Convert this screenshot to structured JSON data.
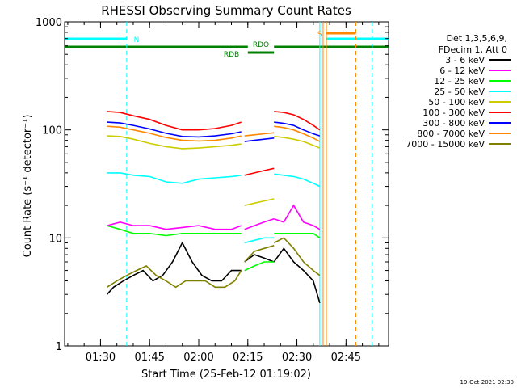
{
  "chart_data": {
    "type": "line",
    "title": "RHESSI Observing Summary Count Rates",
    "ylabel": "Count Rate (s⁻¹ detector⁻¹)",
    "xlabel": "Start Time (25-Feb-12 01:19:02)",
    "footer_date": "19-Oct-2021 02:30",
    "y_scale": "log",
    "ylim": [
      1,
      1000
    ],
    "y_ticks": [
      {
        "value": 1,
        "label": "1"
      },
      {
        "value": 10,
        "label": "10"
      },
      {
        "value": 100,
        "label": "100"
      },
      {
        "value": 1000,
        "label": "1000"
      }
    ],
    "xlim": [
      "01:19:02",
      "02:58:00"
    ],
    "x_ticks": [
      "01:30",
      "01:45",
      "02:00",
      "02:15",
      "02:30",
      "02:45"
    ],
    "grid": false,
    "legend_position": "right",
    "legend_header": [
      "Det 1,3,5,6,9,",
      "FDecim 1, Att 0"
    ],
    "series": [
      {
        "name": "3 - 6 keV",
        "color": "#000000",
        "segments": [
          {
            "x": [
              "01:32",
              "01:34",
              "01:37",
              "01:40",
              "01:43",
              "01:46",
              "01:49",
              "01:52",
              "01:55",
              "01:58",
              "02:01",
              "02:04",
              "02:07",
              "02:10",
              "02:13"
            ],
            "y": [
              3,
              3.5,
              4,
              4.5,
              5,
              4,
              4.5,
              6,
              9,
              6,
              4.5,
              4,
              4,
              5,
              5
            ]
          },
          {
            "x": [
              "02:14",
              "02:17",
              "02:20",
              "02:23"
            ],
            "y": [
              6,
              7,
              6.5,
              6
            ]
          },
          {
            "x": [
              "02:23",
              "02:26",
              "02:29",
              "02:32",
              "02:35",
              "02:37"
            ],
            "y": [
              6,
              8,
              6,
              5,
              4,
              2.5
            ]
          }
        ]
      },
      {
        "name": "6 - 12 keV",
        "color": "#ff00ff",
        "segments": [
          {
            "x": [
              "01:32",
              "01:36",
              "01:40",
              "01:45",
              "01:50",
              "01:55",
              "02:00",
              "02:05",
              "02:10",
              "02:13"
            ],
            "y": [
              13,
              14,
              13,
              13,
              12,
              12.5,
              13,
              12,
              12,
              13
            ]
          },
          {
            "x": [
              "02:14",
              "02:17",
              "02:20",
              "02:23"
            ],
            "y": [
              12,
              13,
              14,
              15
            ]
          },
          {
            "x": [
              "02:23",
              "02:26",
              "02:29",
              "02:32",
              "02:35",
              "02:37"
            ],
            "y": [
              15,
              14,
              20,
              14,
              13,
              12
            ]
          }
        ]
      },
      {
        "name": "12 - 25 keV",
        "color": "#00ff00",
        "segments": [
          {
            "x": [
              "01:32",
              "01:36",
              "01:40",
              "01:45",
              "01:50",
              "01:55",
              "02:00",
              "02:05",
              "02:10",
              "02:13"
            ],
            "y": [
              13,
              12,
              11,
              11,
              10.5,
              11,
              11,
              11,
              11,
              11
            ]
          },
          {
            "x": [
              "02:14",
              "02:17",
              "02:20",
              "02:23"
            ],
            "y": [
              5,
              5.5,
              6,
              6
            ]
          },
          {
            "x": [
              "02:23",
              "02:26",
              "02:29",
              "02:32",
              "02:35",
              "02:37"
            ],
            "y": [
              11,
              11,
              11,
              11,
              11,
              10
            ]
          }
        ]
      },
      {
        "name": "25 - 50 keV",
        "color": "#00ffff",
        "segments": [
          {
            "x": [
              "01:32",
              "01:36",
              "01:40",
              "01:45",
              "01:50",
              "01:55",
              "02:00",
              "02:05",
              "02:10",
              "02:13"
            ],
            "y": [
              40,
              40,
              38,
              37,
              33,
              32,
              35,
              36,
              37,
              38
            ]
          },
          {
            "x": [
              "02:14",
              "02:17",
              "02:20",
              "02:23"
            ],
            "y": [
              9,
              9.5,
              10,
              10
            ]
          },
          {
            "x": [
              "02:23",
              "02:26",
              "02:29",
              "02:32",
              "02:35",
              "02:37"
            ],
            "y": [
              39,
              38,
              37,
              35,
              32,
              30
            ]
          }
        ]
      },
      {
        "name": "50 - 100 keV",
        "color": "#cccc00",
        "segments": [
          {
            "x": [
              "01:32",
              "01:36",
              "01:40",
              "01:45",
              "01:50",
              "01:55",
              "02:00",
              "02:05",
              "02:10",
              "02:13"
            ],
            "y": [
              88,
              87,
              82,
              75,
              70,
              67,
              68,
              70,
              72,
              74
            ]
          },
          {
            "x": [
              "02:14",
              "02:17",
              "02:20",
              "02:23"
            ],
            "y": [
              20,
              21,
              22,
              23
            ]
          },
          {
            "x": [
              "02:23",
              "02:26",
              "02:29",
              "02:32",
              "02:35",
              "02:37"
            ],
            "y": [
              87,
              85,
              82,
              78,
              72,
              68
            ]
          }
        ]
      },
      {
        "name": "100 - 300 keV",
        "color": "#ff0000",
        "segments": [
          {
            "x": [
              "01:32",
              "01:36",
              "01:40",
              "01:45",
              "01:50",
              "01:55",
              "02:00",
              "02:05",
              "02:10",
              "02:13"
            ],
            "y": [
              148,
              145,
              135,
              125,
              110,
              100,
              100,
              103,
              110,
              118
            ]
          },
          {
            "x": [
              "02:14",
              "02:17",
              "02:20",
              "02:23"
            ],
            "y": [
              38,
              40,
              42,
              44
            ]
          },
          {
            "x": [
              "02:23",
              "02:26",
              "02:29",
              "02:32",
              "02:35",
              "02:37"
            ],
            "y": [
              148,
              145,
              138,
              125,
              110,
              100
            ]
          }
        ]
      },
      {
        "name": "300 - 800 keV",
        "color": "#0000ff",
        "segments": [
          {
            "x": [
              "01:32",
              "01:36",
              "01:40",
              "01:45",
              "01:50",
              "01:55",
              "02:00",
              "02:05",
              "02:10",
              "02:13"
            ],
            "y": [
              118,
              116,
              110,
              102,
              93,
              87,
              86,
              88,
              92,
              96
            ]
          },
          {
            "x": [
              "02:14",
              "02:17",
              "02:20",
              "02:23"
            ],
            "y": [
              78,
              80,
              82,
              84
            ]
          },
          {
            "x": [
              "02:23",
              "02:26",
              "02:29",
              "02:32",
              "02:35",
              "02:37"
            ],
            "y": [
              118,
              115,
              110,
              100,
              92,
              88
            ]
          }
        ]
      },
      {
        "name": "800 - 7000 keV",
        "color": "#ff8800",
        "segments": [
          {
            "x": [
              "01:32",
              "01:36",
              "01:40",
              "01:45",
              "01:50",
              "01:55",
              "02:00",
              "02:05",
              "02:10",
              "02:13"
            ],
            "y": [
              108,
              106,
              100,
              93,
              85,
              80,
              79,
              80,
              84,
              88
            ]
          },
          {
            "x": [
              "02:14",
              "02:17",
              "02:20",
              "02:23"
            ],
            "y": [
              88,
              90,
              92,
              94
            ]
          },
          {
            "x": [
              "02:23",
              "02:26",
              "02:29",
              "02:32",
              "02:35",
              "02:37"
            ],
            "y": [
              108,
              105,
              100,
              92,
              84,
              78
            ]
          }
        ]
      },
      {
        "name": "7000 - 15000 keV",
        "color": "#808000",
        "segments": [
          {
            "x": [
              "01:32",
              "01:35",
              "01:38",
              "01:41",
              "01:44",
              "01:47",
              "01:50",
              "01:53",
              "01:56",
              "01:59",
              "02:02",
              "02:05",
              "02:08",
              "02:11",
              "02:13"
            ],
            "y": [
              3.5,
              4,
              4.5,
              5,
              5.5,
              4.5,
              4,
              3.5,
              4,
              4,
              4,
              3.5,
              3.5,
              4,
              5
            ]
          },
          {
            "x": [
              "02:14",
              "02:17",
              "02:20",
              "02:23"
            ],
            "y": [
              6,
              7.5,
              8,
              8.5
            ]
          },
          {
            "x": [
              "02:23",
              "02:26",
              "02:29",
              "02:32",
              "02:35",
              "02:37"
            ],
            "y": [
              9,
              10,
              8,
              6,
              5,
              4.5
            ]
          }
        ]
      }
    ],
    "annotations": {
      "labels": {
        "N": "N",
        "RDO": "RDO",
        "RDB": "RDB",
        "S": "S"
      },
      "vertical_dashed": [
        {
          "time": "01:38",
          "color": "#00ffff"
        },
        {
          "time": "02:48",
          "color": "#ff8800"
        },
        {
          "time": "02:53",
          "color": "#00ffff"
        }
      ],
      "vertical_solid": [
        {
          "time": "02:37",
          "color": "#00ffff"
        },
        {
          "time": "02:38",
          "color": "#ff8800"
        },
        {
          "time": "02:39",
          "color": "#ff8800"
        }
      ],
      "orbit_bars": [
        {
          "color": "#00ffff",
          "level": "N",
          "from": "01:19:02",
          "to": "01:38"
        },
        {
          "color": "#00ffff",
          "level": "N",
          "from": "02:39",
          "to": "02:58"
        },
        {
          "color": "#008000",
          "level": "upper",
          "from": "01:19:02",
          "to": "02:15"
        },
        {
          "color": "#008000",
          "level": "upper",
          "from": "02:23",
          "to": "02:58"
        },
        {
          "color": "#008000",
          "level": "lower",
          "from": "02:15",
          "to": "02:23"
        },
        {
          "color": "#ff8800",
          "level": "S",
          "from": "02:39",
          "to": "02:48"
        }
      ]
    }
  }
}
